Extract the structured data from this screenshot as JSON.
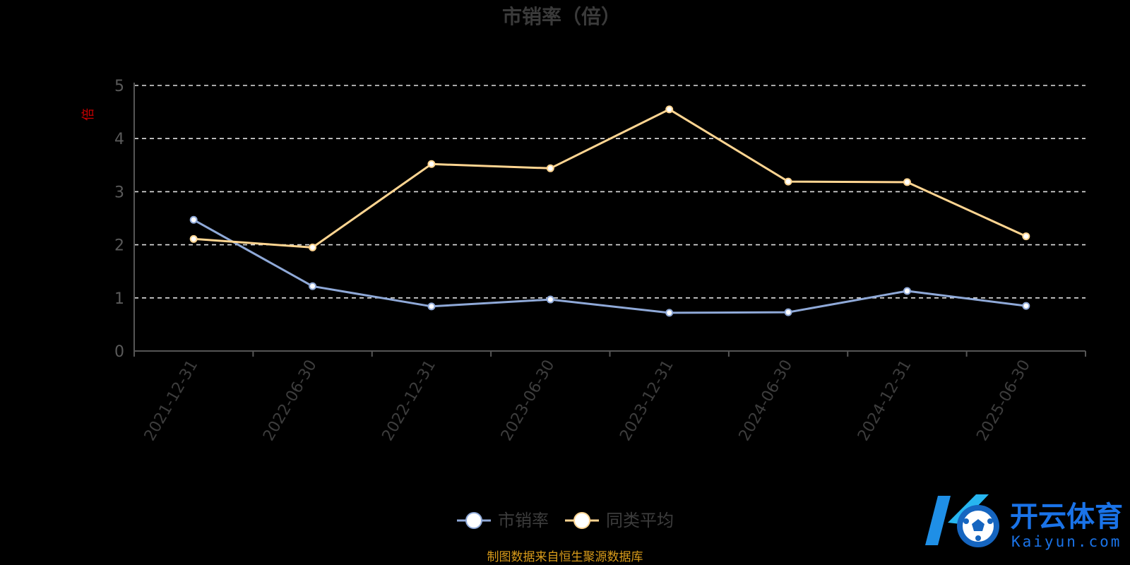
{
  "chart_data": {
    "type": "line",
    "title": "市销率（倍）",
    "ylabel": "倍",
    "categories": [
      "2021-12-31",
      "2022-06-30",
      "2022-12-31",
      "2023-06-30",
      "2023-12-31",
      "2024-06-30",
      "2024-12-31",
      "2025-06-30"
    ],
    "series": [
      {
        "name": "市销率",
        "values": [
          2.47,
          1.22,
          0.84,
          0.97,
          0.72,
          0.73,
          1.13,
          0.85
        ],
        "color": "#8fa9d8"
      },
      {
        "name": "同类平均",
        "values": [
          2.11,
          1.95,
          3.52,
          3.44,
          4.55,
          3.19,
          3.18,
          2.16
        ],
        "color": "#ffd591"
      }
    ],
    "ylim": [
      0,
      5
    ],
    "yticks": [
      "0",
      "1",
      "2",
      "3",
      "4",
      "5"
    ],
    "grid": true,
    "legend": "bottom-center"
  },
  "footer": {
    "source": "制图数据来自恒生聚源数据库"
  },
  "watermark": {
    "brand": "开云体育",
    "url": "Kaiyun.com"
  }
}
